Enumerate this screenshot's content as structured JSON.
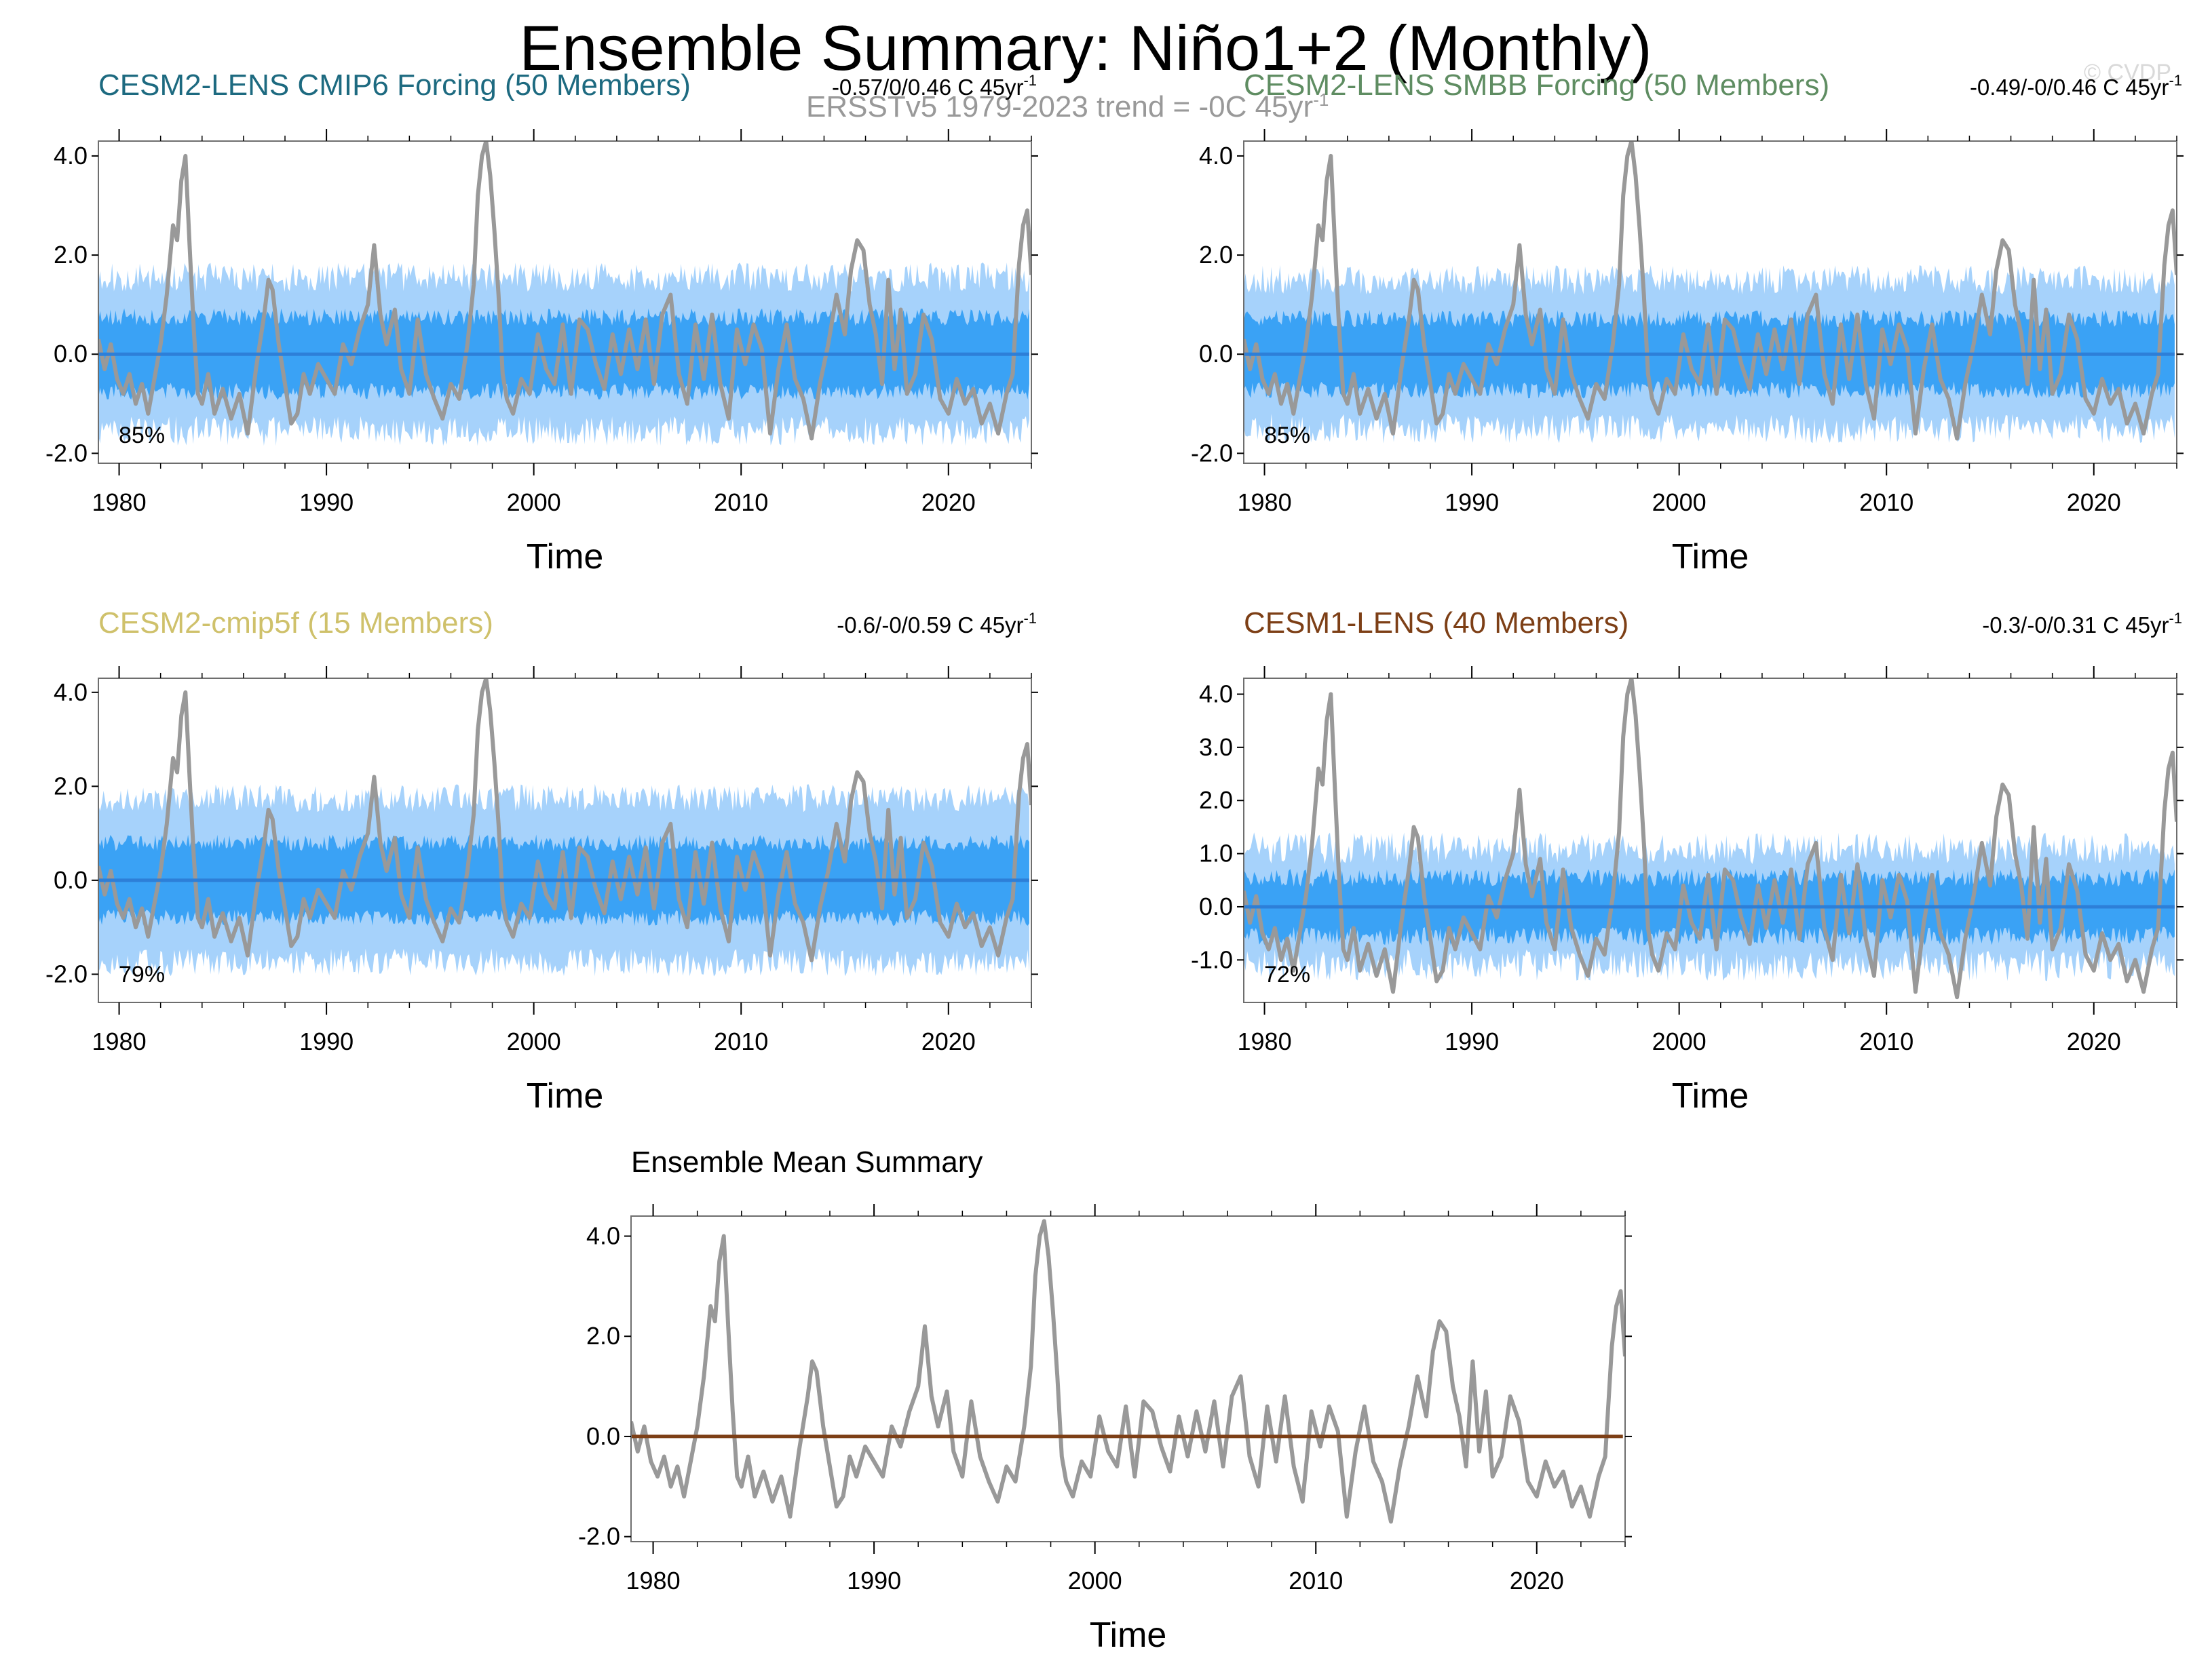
{
  "figure": {
    "title": "Ensemble Summary: Niño1+2 (Monthly)",
    "observation_label": "ERSSTv5 1979-2023 trend = -0C 45yr",
    "observation_label_superscript": "-1",
    "copyright": "© CVDP"
  },
  "colors": {
    "obs_line": "#999999",
    "band_outer": "#a6d2fb",
    "band_inner": "#3aa2f5",
    "ens_mean": "#2d7fd8",
    "frame": "#6e6e6e"
  },
  "chart_data": [
    {
      "type": "area",
      "title": "CESM2-LENS CMIP6 Forcing (50 Members)",
      "title_color": "#1d6a80",
      "trend_text": "-0.57/0/0.46 C 45yr",
      "trend_superscript": "-1",
      "percent_text": "85%",
      "xlabel": "Time",
      "ylabel": "",
      "xlim": [
        1979,
        2024
      ],
      "ylim": [
        -2.2,
        4.3
      ],
      "yticks": [
        4.0,
        2.0,
        0.0,
        -2.0
      ],
      "ytick_labels": [
        "4.0",
        "2.0",
        "0.0",
        "-2.0"
      ],
      "xticks": [
        1980,
        1990,
        2000,
        2010,
        2020
      ],
      "xtick_labels": [
        "1980",
        "1990",
        "2000",
        "2010",
        "2020"
      ],
      "band_outer_halfwidth": 1.55,
      "band_inner_halfwidth": 0.75,
      "band_seed": 11
    },
    {
      "type": "area",
      "title": "CESM2-LENS SMBB Forcing (50 Members)",
      "title_color": "#5f8d62",
      "trend_text": "-0.49/-0/0.46 C 45yr",
      "trend_superscript": "-1",
      "percent_text": "85%",
      "xlabel": "Time",
      "ylabel": "",
      "xlim": [
        1979,
        2024
      ],
      "ylim": [
        -2.2,
        4.3
      ],
      "yticks": [
        4.0,
        2.0,
        0.0,
        -2.0
      ],
      "ytick_labels": [
        "4.0",
        "2.0",
        "0.0",
        "-2.0"
      ],
      "xticks": [
        1980,
        1990,
        2000,
        2010,
        2020
      ],
      "xtick_labels": [
        "1980",
        "1990",
        "2000",
        "2010",
        "2020"
      ],
      "band_outer_halfwidth": 1.5,
      "band_inner_halfwidth": 0.72,
      "band_seed": 23
    },
    {
      "type": "area",
      "title": "CESM2-cmip5f (15 Members)",
      "title_color": "#cfc16b",
      "trend_text": "-0.6/-0/0.59 C 45yr",
      "trend_superscript": "-1",
      "percent_text": "79%",
      "xlabel": "Time",
      "ylabel": "",
      "xlim": [
        1979,
        2024
      ],
      "ylim": [
        -2.6,
        4.3
      ],
      "yticks": [
        4.0,
        2.0,
        0.0,
        -2.0
      ],
      "ytick_labels": [
        "4.0",
        "2.0",
        "0.0",
        "-2.0"
      ],
      "xticks": [
        1980,
        1990,
        2000,
        2010,
        2020
      ],
      "xtick_labels": [
        "1980",
        "1990",
        "2000",
        "2010",
        "2020"
      ],
      "band_outer_halfwidth": 1.75,
      "band_inner_halfwidth": 0.8,
      "band_seed": 37
    },
    {
      "type": "area",
      "title": "CESM1-LENS (40 Members)",
      "title_color": "#7d3f16",
      "trend_text": "-0.3/-0/0.31 C 45yr",
      "trend_superscript": "-1",
      "percent_text": "72%",
      "xlabel": "Time",
      "ylabel": "",
      "xlim": [
        1979,
        2024
      ],
      "ylim": [
        -1.8,
        4.3
      ],
      "yticks": [
        4.0,
        3.0,
        2.0,
        1.0,
        0.0,
        -1.0
      ],
      "ytick_labels": [
        "4.0",
        "3.0",
        "2.0",
        "1.0",
        "0.0",
        "-1.0"
      ],
      "xticks": [
        1980,
        1990,
        2000,
        2010,
        2020
      ],
      "xtick_labels": [
        "1980",
        "1990",
        "2000",
        "2010",
        "2020"
      ],
      "band_outer_halfwidth": 1.1,
      "band_inner_halfwidth": 0.55,
      "band_seed": 51
    },
    {
      "type": "line",
      "title": "Ensemble Mean Summary",
      "title_color": "#000000",
      "trend_text": "",
      "percent_text": "",
      "xlabel": "Time",
      "ylabel": "",
      "xlim": [
        1979,
        2024
      ],
      "ylim": [
        -2.1,
        4.4
      ],
      "yticks": [
        4.0,
        2.0,
        0.0,
        -2.0
      ],
      "ytick_labels": [
        "4.0",
        "2.0",
        "0.0",
        "-2.0"
      ],
      "xticks": [
        1980,
        1990,
        2000,
        2010,
        2020
      ],
      "xtick_labels": [
        "1980",
        "1990",
        "2000",
        "2010",
        "2020"
      ],
      "mean_line_color": "#7d3f16"
    }
  ],
  "observed_series": {
    "name": "ERSSTv5 Niño1+2 anomaly",
    "x": [
      1979.0,
      1979.3,
      1979.6,
      1979.9,
      1980.2,
      1980.5,
      1980.8,
      1981.1,
      1981.4,
      1981.7,
      1982.0,
      1982.3,
      1982.6,
      1982.8,
      1983.0,
      1983.2,
      1983.4,
      1983.6,
      1983.8,
      1984.0,
      1984.3,
      1984.6,
      1985.0,
      1985.4,
      1985.8,
      1986.2,
      1986.6,
      1987.0,
      1987.2,
      1987.4,
      1987.7,
      1988.0,
      1988.3,
      1988.6,
      1988.9,
      1989.2,
      1989.6,
      1990.0,
      1990.4,
      1990.8,
      1991.2,
      1991.6,
      1992.0,
      1992.3,
      1992.6,
      1992.9,
      1993.3,
      1993.6,
      1994.0,
      1994.4,
      1994.8,
      1995.2,
      1995.6,
      1996.0,
      1996.4,
      1996.8,
      1997.1,
      1997.3,
      1997.5,
      1997.7,
      1997.9,
      1998.1,
      1998.3,
      1998.5,
      1998.7,
      1999.0,
      1999.4,
      1999.8,
      2000.2,
      2000.6,
      2001.0,
      2001.4,
      2001.8,
      2002.2,
      2002.6,
      2003.0,
      2003.4,
      2003.8,
      2004.2,
      2004.6,
      2005.0,
      2005.4,
      2005.8,
      2006.2,
      2006.6,
      2007.0,
      2007.4,
      2007.8,
      2008.2,
      2008.6,
      2009.0,
      2009.4,
      2009.8,
      2010.2,
      2010.6,
      2011.0,
      2011.4,
      2011.8,
      2012.2,
      2012.6,
      2013.0,
      2013.4,
      2013.8,
      2014.2,
      2014.6,
      2015.0,
      2015.3,
      2015.6,
      2015.9,
      2016.2,
      2016.5,
      2016.8,
      2017.1,
      2017.4,
      2017.7,
      2018.0,
      2018.4,
      2018.8,
      2019.2,
      2019.6,
      2020.0,
      2020.4,
      2020.8,
      2021.2,
      2021.6,
      2022.0,
      2022.4,
      2022.8,
      2023.1,
      2023.4,
      2023.6,
      2023.8,
      2024.0
    ],
    "values": [
      0.3,
      -0.3,
      0.2,
      -0.5,
      -0.8,
      -0.4,
      -1.0,
      -0.6,
      -1.2,
      -0.5,
      0.2,
      1.2,
      2.6,
      2.3,
      3.5,
      4.0,
      2.2,
      0.5,
      -0.8,
      -1.0,
      -0.4,
      -1.2,
      -0.7,
      -1.3,
      -0.8,
      -1.6,
      -0.3,
      0.8,
      1.5,
      1.3,
      0.2,
      -0.6,
      -1.4,
      -1.2,
      -0.4,
      -0.8,
      -0.2,
      -0.5,
      -0.8,
      0.2,
      -0.2,
      0.5,
      1.0,
      2.2,
      0.8,
      0.2,
      0.9,
      -0.3,
      -0.8,
      0.7,
      -0.4,
      -0.9,
      -1.3,
      -0.6,
      -0.9,
      0.2,
      1.4,
      3.2,
      4.0,
      4.3,
      3.6,
      2.5,
      1.2,
      -0.4,
      -0.9,
      -1.2,
      -0.5,
      -0.8,
      0.4,
      -0.3,
      -0.6,
      0.6,
      -0.8,
      0.7,
      0.5,
      -0.2,
      -0.7,
      0.4,
      -0.4,
      0.5,
      -0.3,
      0.7,
      -0.6,
      0.8,
      1.2,
      -0.4,
      -1.0,
      0.6,
      -0.5,
      0.8,
      -0.6,
      -1.3,
      0.5,
      -0.2,
      0.6,
      0.1,
      -1.6,
      -0.3,
      0.6,
      -0.5,
      -0.9,
      -1.7,
      -0.6,
      0.2,
      1.2,
      0.4,
      1.7,
      2.3,
      2.1,
      1.0,
      0.4,
      -0.6,
      1.5,
      -0.3,
      0.9,
      -0.8,
      -0.4,
      0.8,
      0.3,
      -0.9,
      -1.2,
      -0.5,
      -1.0,
      -0.7,
      -1.4,
      -1.0,
      -1.6,
      -0.8,
      -0.4,
      1.8,
      2.6,
      2.9,
      1.6
    ]
  }
}
